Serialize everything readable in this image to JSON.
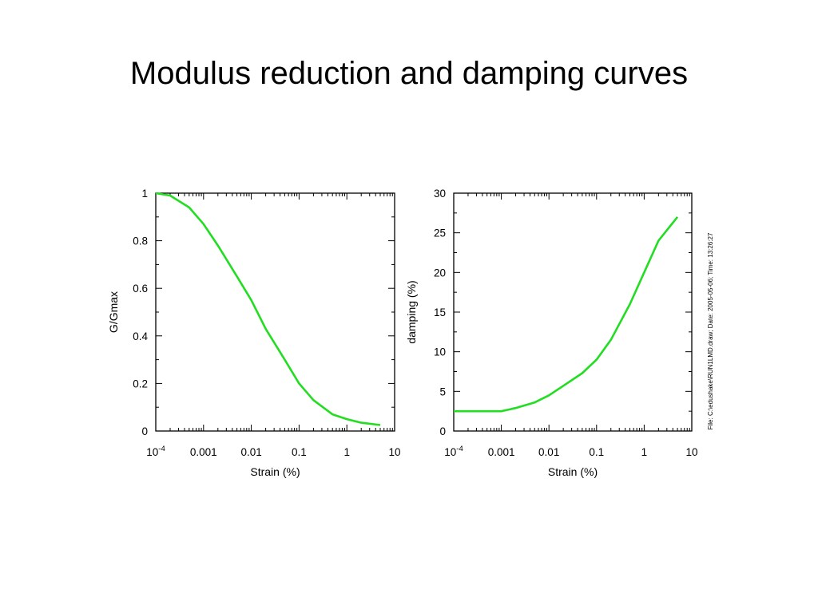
{
  "slide": {
    "title": "Modulus reduction and damping curves"
  },
  "footer_note": "File: C:\\edushake\\RUN1LMD.draw; Date: 2005-05-06; Time: 13:26:27",
  "colors": {
    "curve": "#22dd22",
    "axes": "#000000"
  },
  "chart_data": [
    {
      "type": "line",
      "xscale": "log",
      "xlabel": "Strain  (%)",
      "ylabel": "G/Gmax",
      "xlim": [
        0.0001,
        10
      ],
      "ylim": [
        0,
        1
      ],
      "xticks": [
        {
          "v": 0.0001,
          "base": "10",
          "exp": "-4"
        },
        {
          "v": 0.001,
          "label": "0.001"
        },
        {
          "v": 0.01,
          "label": "0.01"
        },
        {
          "v": 0.1,
          "label": "0.1"
        },
        {
          "v": 1,
          "label": "1"
        },
        {
          "v": 10,
          "label": "10"
        }
      ],
      "yticks": [
        {
          "v": 0,
          "label": "0"
        },
        {
          "v": 0.2,
          "label": "0.2"
        },
        {
          "v": 0.4,
          "label": "0.4"
        },
        {
          "v": 0.6,
          "label": "0.6"
        },
        {
          "v": 0.8,
          "label": "0.8"
        },
        {
          "v": 1,
          "label": "1"
        }
      ],
      "series": [
        {
          "x": [
            0.0001,
            0.0002,
            0.0005,
            0.001,
            0.002,
            0.005,
            0.01,
            0.02,
            0.05,
            0.1,
            0.2,
            0.5,
            1,
            2,
            5
          ],
          "y": [
            1.0,
            0.99,
            0.94,
            0.87,
            0.78,
            0.65,
            0.55,
            0.43,
            0.3,
            0.2,
            0.13,
            0.07,
            0.05,
            0.035,
            0.025
          ]
        }
      ]
    },
    {
      "type": "line",
      "xscale": "log",
      "xlabel": "Strain  (%)",
      "ylabel": "damping (%)",
      "xlim": [
        0.0001,
        10
      ],
      "ylim": [
        0,
        30
      ],
      "xticks": [
        {
          "v": 0.0001,
          "base": "10",
          "exp": "-4"
        },
        {
          "v": 0.001,
          "label": "0.001"
        },
        {
          "v": 0.01,
          "label": "0.01"
        },
        {
          "v": 0.1,
          "label": "0.1"
        },
        {
          "v": 1,
          "label": "1"
        },
        {
          "v": 10,
          "label": "10"
        }
      ],
      "yticks": [
        {
          "v": 0,
          "label": "0"
        },
        {
          "v": 5,
          "label": "5"
        },
        {
          "v": 10,
          "label": "10"
        },
        {
          "v": 15,
          "label": "15"
        },
        {
          "v": 20,
          "label": "20"
        },
        {
          "v": 25,
          "label": "25"
        },
        {
          "v": 30,
          "label": "30"
        }
      ],
      "series": [
        {
          "x": [
            0.0001,
            0.0002,
            0.0005,
            0.001,
            0.002,
            0.005,
            0.01,
            0.02,
            0.05,
            0.1,
            0.2,
            0.5,
            1,
            2,
            5
          ],
          "y": [
            2.5,
            2.5,
            2.5,
            2.5,
            2.9,
            3.6,
            4.5,
            5.7,
            7.3,
            9.0,
            11.5,
            16.0,
            20.0,
            24.0,
            27.0
          ]
        }
      ]
    }
  ]
}
